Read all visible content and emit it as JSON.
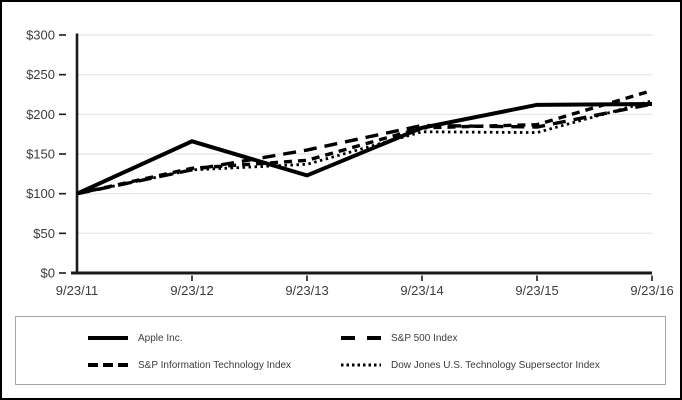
{
  "chart_data": {
    "type": "line",
    "title": "",
    "x_categories": [
      "9/23/11",
      "9/23/12",
      "9/23/13",
      "9/23/14",
      "9/23/15",
      "9/23/16"
    ],
    "y_ticks": [
      "$0",
      "$50",
      "$100",
      "$150",
      "$200",
      "$250",
      "$300"
    ],
    "y_tick_values": [
      0,
      50,
      100,
      150,
      200,
      250,
      300
    ],
    "ylim": [
      0,
      300
    ],
    "grid": "horizontal-only",
    "legend_position": "bottom-box-2x2",
    "series": [
      {
        "name": "Apple Inc.",
        "line_style": "solid",
        "values": [
          100,
          166,
          123,
          183,
          212,
          213
        ]
      },
      {
        "name": "S&P 500 Index",
        "line_style": "long-dash",
        "values": [
          100,
          130,
          155,
          186,
          184,
          213
        ]
      },
      {
        "name": "S&P Information Technology Index",
        "line_style": "short-dash",
        "values": [
          100,
          132,
          142,
          183,
          187,
          230
        ]
      },
      {
        "name": "Dow Jones U.S. Technology Supersector Index",
        "line_style": "dotted",
        "values": [
          100,
          130,
          137,
          178,
          177,
          217
        ]
      }
    ],
    "colors": {
      "line": "#000000",
      "grid": "#e8e8e8",
      "axis": "#1a1a1a",
      "text": "#3d3d3d",
      "legend_border": "#a6a6a6",
      "frame_border": "#000000"
    }
  }
}
